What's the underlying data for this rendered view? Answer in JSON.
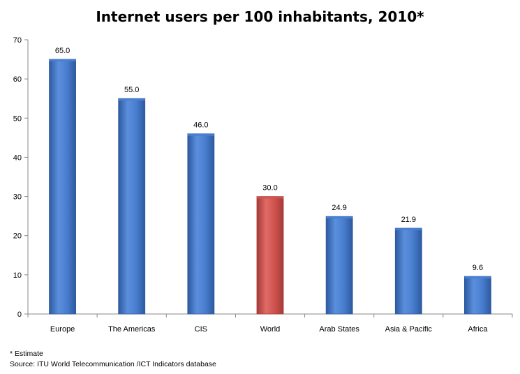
{
  "chart_data": {
    "type": "bar",
    "title": "Internet users per 100 inhabitants, 2010*",
    "xlabel": "",
    "ylabel": "",
    "categories": [
      "Europe",
      "The Americas",
      "CIS",
      "World",
      "Arab States",
      "Asia & Pacific",
      "Africa"
    ],
    "values": [
      65.0,
      55.0,
      46.0,
      30.0,
      24.9,
      21.9,
      9.6
    ],
    "value_labels": [
      "65.0",
      "55.0",
      "46.0",
      "30.0",
      "24.9",
      "21.9",
      "9.6"
    ],
    "ylim": [
      0,
      70
    ],
    "yticks": [
      0,
      10,
      20,
      30,
      40,
      50,
      60,
      70
    ],
    "grid": false,
    "legend": "none",
    "colors": {
      "default_bar": "#4a7fd0",
      "default_bar_dark": "#2d5aa0",
      "highlight_bar": "#d05450",
      "highlight_bar_dark": "#a63a38",
      "axis": "#888888"
    },
    "highlight_category": "World"
  },
  "notes": {
    "estimate": "* Estimate",
    "source": "Source:  ITU World Telecommunication /ICT Indicators database"
  }
}
